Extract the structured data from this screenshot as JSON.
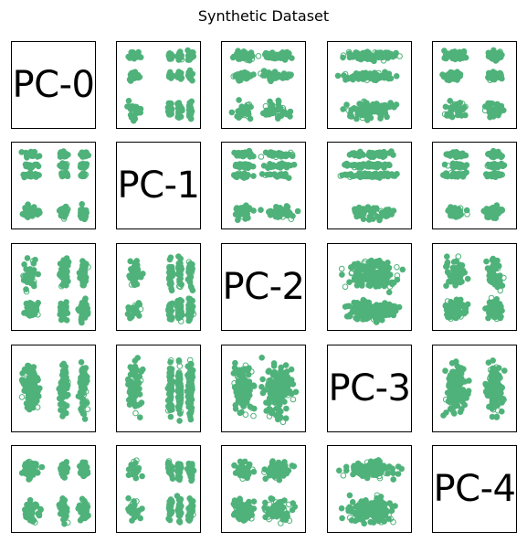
{
  "title": "Synthetic Dataset",
  "chart_data": {
    "type": "scatter",
    "title": "Synthetic Dataset",
    "layout": "5x5 scatter-plot matrix; diagonal cells show component labels",
    "components": [
      "PC-0",
      "PC-1",
      "PC-2",
      "PC-3",
      "PC-4"
    ],
    "marker": "hollow circle",
    "color": "#4fb27a",
    "axes_ticks": "none",
    "grid": false,
    "clusters_note": "approximate cluster structure per component (normalized 0-1 within each panel)",
    "component_clusters": {
      "PC-0": [
        [
          0.05,
          0.35
        ],
        [
          0.55,
          0.7
        ],
        [
          0.8,
          0.95
        ]
      ],
      "PC-1": [
        [
          0.05,
          0.3
        ],
        [
          0.6,
          0.68
        ],
        [
          0.72,
          0.8
        ],
        [
          0.85,
          0.95
        ]
      ],
      "PC-2": [
        [
          0.05,
          0.4
        ],
        [
          0.4,
          0.95
        ]
      ],
      "PC-3": [
        [
          0.05,
          0.95
        ]
      ],
      "PC-4": [
        [
          0.05,
          0.45
        ],
        [
          0.6,
          0.9
        ]
      ]
    }
  }
}
